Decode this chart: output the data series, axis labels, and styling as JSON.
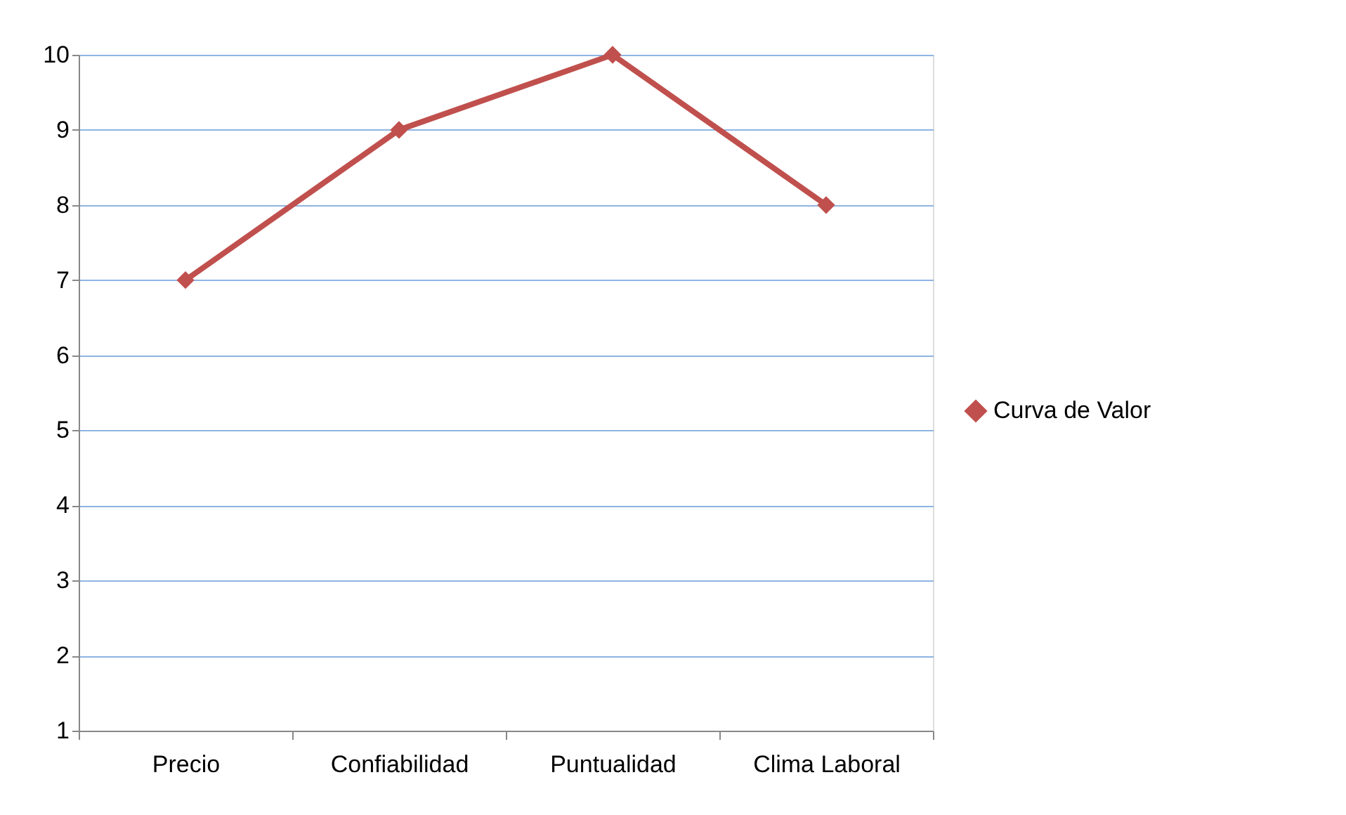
{
  "chart_data": {
    "type": "line",
    "categories": [
      "Precio",
      "Confiabilidad",
      "Puntualidad",
      "Clima Laboral"
    ],
    "series": [
      {
        "name": "Curva de Valor",
        "color": "#c0504d",
        "values": [
          7,
          9,
          10,
          8
        ]
      }
    ],
    "ylim": [
      1,
      10
    ],
    "yticks": [
      1,
      2,
      3,
      4,
      5,
      6,
      7,
      8,
      9,
      10
    ],
    "grid": "y",
    "legend": "right",
    "marker": "diamond",
    "line_style": "solid"
  }
}
